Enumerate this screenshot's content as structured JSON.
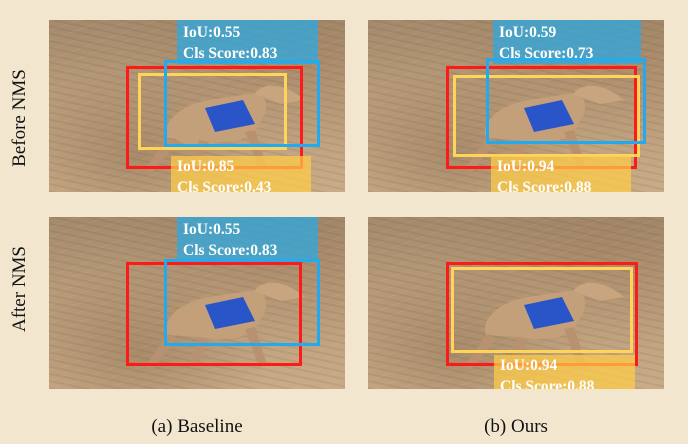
{
  "rows": {
    "before": "Before NMS",
    "after": "After NMS"
  },
  "captions": {
    "baseline": "(a) Baseline",
    "ours": "(b) Ours"
  },
  "panels": {
    "baseline_before": {
      "blue_label": {
        "iou": "IoU:0.55",
        "cls": "Cls Score:0.83"
      },
      "yellow_label": {
        "iou": "IoU:0.85",
        "cls": "Cls Score:0.43"
      }
    },
    "ours_before": {
      "blue_label": {
        "iou": "IoU:0.59",
        "cls": "Cls Score:0.73"
      },
      "yellow_label": {
        "iou": "IoU:0.94",
        "cls": "Cls Score:0.88"
      }
    },
    "baseline_after": {
      "blue_label": {
        "iou": "IoU:0.55",
        "cls": "Cls Score:0.83"
      }
    },
    "ours_after": {
      "yellow_label": {
        "iou": "IoU:0.94",
        "cls": "Cls Score:0.88"
      }
    }
  },
  "colors": {
    "ground_truth_box": "#ff1a1a",
    "yellow_box": "#ffd45a",
    "blue_box": "#22aaf0",
    "background": "#f2e6cf"
  }
}
